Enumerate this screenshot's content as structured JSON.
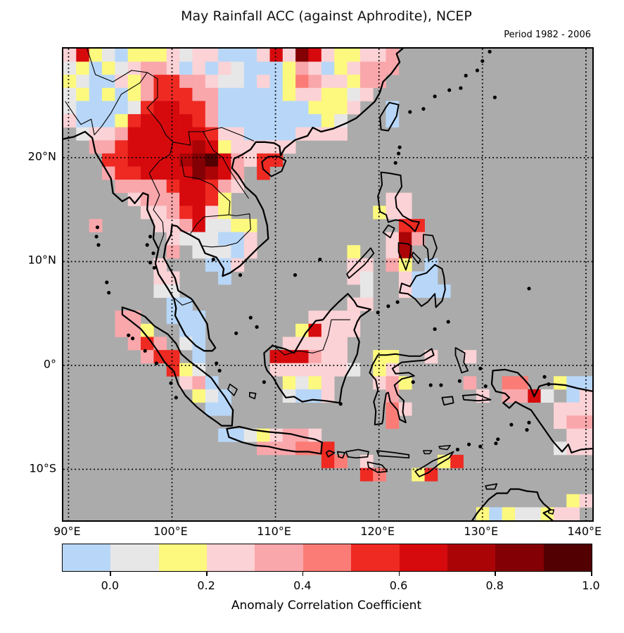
{
  "title": "May Rainfall ACC (against Aphrodite), NCEP",
  "subtitle": "Period 1982 - 2006",
  "axes": {
    "x_ticks": [
      {
        "label": "90°E",
        "lon": 90
      },
      {
        "label": "100°E",
        "lon": 100
      },
      {
        "label": "110°E",
        "lon": 110
      },
      {
        "label": "120°E",
        "lon": 120
      },
      {
        "label": "130°E",
        "lon": 130
      },
      {
        "label": "140°E",
        "lon": 140
      }
    ],
    "y_ticks": [
      {
        "label": "20°N",
        "lat": 20
      },
      {
        "label": "10°N",
        "lat": 10
      },
      {
        "label": "0°",
        "lat": 0
      },
      {
        "label": "10°S",
        "lat": -10
      }
    ]
  },
  "colorbar": {
    "title": "Anomaly Correlation Coefficient",
    "tick_labels": [
      "0.0",
      "0.2",
      "0.4",
      "0.6",
      "0.8",
      "1.0"
    ],
    "tick_values": [
      0.0,
      0.2,
      0.4,
      0.6,
      0.8,
      1.0
    ],
    "domain": [
      -0.1,
      1.0
    ],
    "segment_colors": [
      "#b8d7f8",
      "#e7e7e7",
      "#fdf97e",
      "#fbd2d5",
      "#f9a7ab",
      "#fb7c76",
      "#ee2a22",
      "#d60a0d",
      "#aa0407",
      "#830004",
      "#520001"
    ]
  },
  "chart_data": {
    "type": "heatmap",
    "title": "May Rainfall ACC (against Aphrodite), NCEP",
    "subtitle": "Period 1982 - 2006",
    "value_label": "Anomaly Correlation Coefficient",
    "map_extent": {
      "lon_min": 89.5,
      "lon_max": 140.6,
      "lat_min": -14.9,
      "lat_max": 30.5
    },
    "grid": {
      "cols": 41,
      "rows": 36,
      "cell_deg": 1.25,
      "origin_lon": 89.5,
      "origin_lat": 30.5
    },
    "no_data_color": "#ababab",
    "gridlines": {
      "lon": [
        90,
        100,
        110,
        120,
        130,
        140
      ],
      "lat": [
        20,
        10,
        0,
        -10
      ],
      "style": "dotted"
    },
    "classes": [
      {
        "code": "b",
        "range": "< 0.0",
        "color": "#b8d7f8"
      },
      {
        "code": "w",
        "range": "0.0 - 0.1",
        "color": "#e7e7e7"
      },
      {
        "code": "y",
        "range": "0.1 - 0.2",
        "color": "#fdf97e"
      },
      {
        "code": "q",
        "range": "0.2 - 0.3",
        "color": "#fbd2d5"
      },
      {
        "code": "p",
        "range": "0.3 - 0.4",
        "color": "#f9a7ab"
      },
      {
        "code": "s",
        "range": "0.4 - 0.5",
        "color": "#fb7c76"
      },
      {
        "code": "r",
        "range": "0.5 - 0.6",
        "color": "#ee2a22"
      },
      {
        "code": "R",
        "range": "0.6 - 0.7",
        "color": "#d60a0d"
      },
      {
        "code": "D",
        "range": "0.7 - 0.8",
        "color": "#aa0407"
      },
      {
        "code": "M",
        "range": "0.8 - 0.9",
        "color": "#830004"
      },
      {
        "code": "K",
        "range": "0.9 - 1.0",
        "color": "#520001"
      }
    ],
    "cell_runs": [
      [
        0,
        0,
        "qRywbyyyqwqqbbbqRqMRqyyqqp"
      ],
      [
        1,
        0,
        "wybywqppqbqbqwbbbypqbyqppp"
      ],
      [
        2,
        0,
        "ywbbqyprrppqwwbqbyspqqypp"
      ],
      [
        3,
        0,
        "wybybyprrrppbbbbbyqqyywq"
      ],
      [
        4,
        0,
        "wbbbbwrRRrrpbbbbbbbyyyq"
      ],
      [
        4,
        25,
        "b"
      ],
      [
        5,
        0,
        "qbbbyrRRRRrpbbbbbbbbyw"
      ],
      [
        5,
        25,
        "b"
      ],
      [
        6,
        1,
        "wqqpRRRRRRrqqbbbbqqqq"
      ],
      [
        7,
        2,
        "pprRRRRRDRyqqqqq"
      ],
      [
        8,
        3,
        "rrRRRRDMKRpqrr"
      ],
      [
        9,
        3,
        "prrRRRRMDRp"
      ],
      [
        9,
        15,
        "r"
      ],
      [
        10,
        4,
        "pppprRRrpq"
      ],
      [
        11,
        5,
        "qpppRRry"
      ],
      [
        11,
        25,
        "qq"
      ],
      [
        12,
        6,
        "qqprRqy"
      ],
      [
        12,
        24,
        "yqq"
      ],
      [
        13,
        2,
        "p"
      ],
      [
        13,
        7,
        "qqpRwwyy"
      ],
      [
        13,
        26,
        "rr"
      ],
      [
        14,
        8,
        "qwwwbbq"
      ],
      [
        14,
        25,
        "qDp"
      ],
      [
        15,
        8,
        "p"
      ],
      [
        15,
        10,
        "wwwbq"
      ],
      [
        15,
        22,
        "y"
      ],
      [
        15,
        25,
        "qD"
      ],
      [
        16,
        7,
        "q"
      ],
      [
        16,
        11,
        "bbq"
      ],
      [
        16,
        22,
        "qq"
      ],
      [
        16,
        25,
        "py"
      ],
      [
        16,
        28,
        "b"
      ],
      [
        17,
        7,
        "qq"
      ],
      [
        17,
        12,
        "b"
      ],
      [
        17,
        22,
        "qw"
      ],
      [
        17,
        26,
        "qbb"
      ],
      [
        18,
        7,
        "ww"
      ],
      [
        18,
        23,
        "w"
      ],
      [
        18,
        26,
        "qbbb"
      ],
      [
        19,
        8,
        "bb"
      ],
      [
        19,
        22,
        "qq"
      ],
      [
        20,
        4,
        "pp"
      ],
      [
        20,
        8,
        "bbb"
      ],
      [
        20,
        19,
        "qqqq"
      ],
      [
        21,
        4,
        "ppy"
      ],
      [
        21,
        9,
        "bb"
      ],
      [
        21,
        18,
        "yRqqq"
      ],
      [
        22,
        5,
        "prp"
      ],
      [
        22,
        9,
        "wb"
      ],
      [
        22,
        17,
        "qqqqq"
      ],
      [
        23,
        6,
        "prr"
      ],
      [
        23,
        10,
        "b"
      ],
      [
        23,
        16,
        "RRRpqq"
      ],
      [
        23,
        24,
        "yy"
      ],
      [
        23,
        28,
        "q"
      ],
      [
        23,
        31,
        "q"
      ],
      [
        24,
        8,
        "ryw"
      ],
      [
        24,
        16,
        "qqqqqqw"
      ],
      [
        24,
        24,
        "yq"
      ],
      [
        25,
        9,
        "qpb"
      ],
      [
        25,
        17,
        "ywyq"
      ],
      [
        25,
        24,
        "qpy"
      ],
      [
        25,
        31,
        "p"
      ],
      [
        25,
        34,
        "ss"
      ],
      [
        25,
        38,
        "ybb"
      ],
      [
        26,
        10,
        "ywb"
      ],
      [
        26,
        17,
        "wbbq"
      ],
      [
        26,
        25,
        "p"
      ],
      [
        26,
        32,
        "q"
      ],
      [
        26,
        34,
        "ppRw"
      ],
      [
        26,
        39,
        "bq"
      ],
      [
        27,
        11,
        "bb"
      ],
      [
        27,
        25,
        "sq"
      ],
      [
        27,
        38,
        "qqq"
      ],
      [
        28,
        25,
        "s"
      ],
      [
        28,
        38,
        "qpp"
      ],
      [
        29,
        12,
        "bbwyqppq"
      ],
      [
        29,
        39,
        "qq"
      ],
      [
        30,
        15,
        "pppssr"
      ],
      [
        30,
        38,
        "wqq"
      ],
      [
        31,
        20,
        "rs"
      ],
      [
        31,
        23,
        "q"
      ],
      [
        31,
        29,
        "yr"
      ],
      [
        32,
        23,
        "rs"
      ],
      [
        32,
        27,
        "yr"
      ],
      [
        34,
        39,
        "yq"
      ],
      [
        35,
        32,
        "ybywwyqq"
      ]
    ]
  },
  "colors": {
    "background": "#ffffff",
    "frame": "#000000",
    "ocean": "#ababab",
    "coastline": "#000000"
  }
}
